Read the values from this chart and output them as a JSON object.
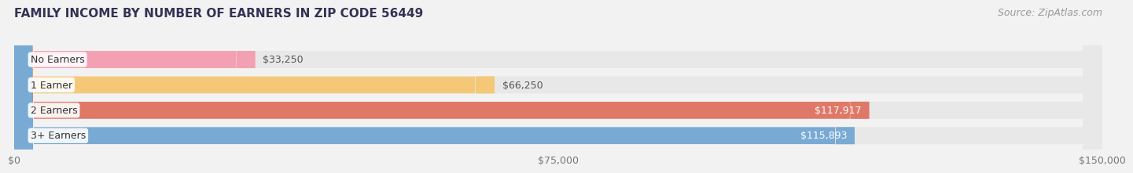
{
  "title": "FAMILY INCOME BY NUMBER OF EARNERS IN ZIP CODE 56449",
  "source": "Source: ZipAtlas.com",
  "categories": [
    "No Earners",
    "1 Earner",
    "2 Earners",
    "3+ Earners"
  ],
  "values": [
    33250,
    66250,
    117917,
    115893
  ],
  "bar_colors": [
    "#f2a0b2",
    "#f5c878",
    "#e07868",
    "#78aad4"
  ],
  "label_colors": [
    "#555555",
    "#555555",
    "#ffffff",
    "#ffffff"
  ],
  "value_labels": [
    "$33,250",
    "$66,250",
    "$117,917",
    "$115,893"
  ],
  "xlim": [
    0,
    150000
  ],
  "xticks": [
    0,
    75000,
    150000
  ],
  "xtick_labels": [
    "$0",
    "$75,000",
    "$150,000"
  ],
  "bg_color": "#f2f2f2",
  "bar_bg_color": "#e8e8e8",
  "title_color": "#333355",
  "source_color": "#999999",
  "title_fontsize": 11,
  "source_fontsize": 9,
  "label_fontsize": 9,
  "value_fontsize": 9,
  "tick_fontsize": 9,
  "bar_height": 0.68,
  "value_threshold": 100000
}
